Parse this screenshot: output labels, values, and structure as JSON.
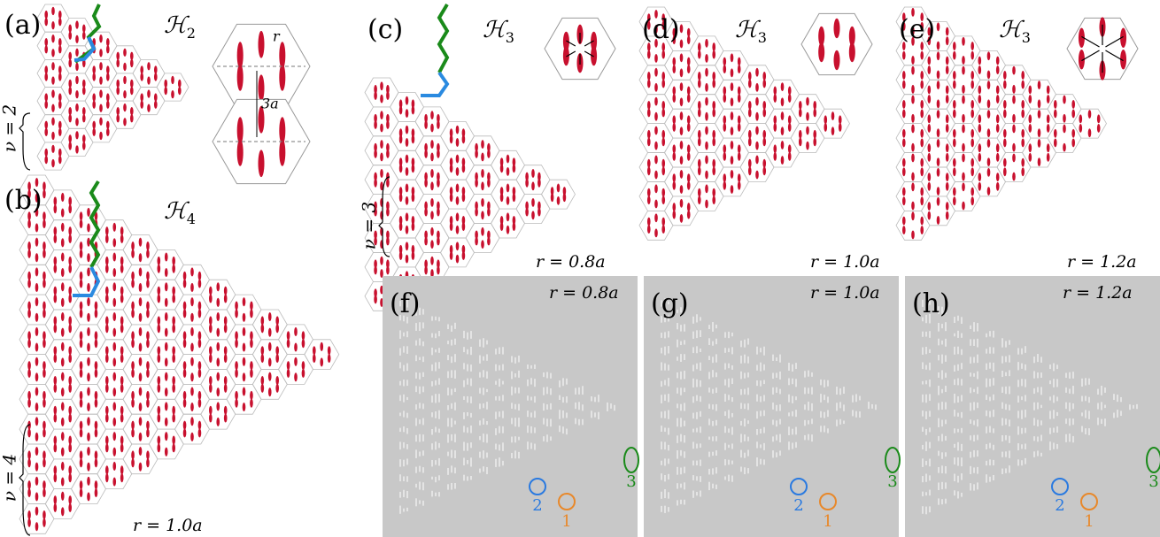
{
  "panels": [
    {
      "label": "(a)",
      "hamiltonian": "ℋ",
      "index": "2",
      "nu": "ν = 2",
      "inset_r": "r",
      "inset_spacing": "3a"
    },
    {
      "label": "(b)",
      "hamiltonian": "ℋ",
      "index": "4",
      "nu": "ν = 4",
      "radius": "r = 1.0a"
    },
    {
      "label": "(c)",
      "hamiltonian": "ℋ",
      "index": "3",
      "nu": "ν = 3",
      "radius": "r = 0.8a"
    },
    {
      "label": "(d)",
      "hamiltonian": "ℋ",
      "index": "3",
      "radius": "r = 1.0a"
    },
    {
      "label": "(e)",
      "hamiltonian": "ℋ",
      "index": "3",
      "radius": "r = 1.2a"
    },
    {
      "label": "(f)",
      "radius": "r = 0.8a",
      "markers": [
        "2",
        "1",
        "3"
      ]
    },
    {
      "label": "(g)",
      "radius": "r = 1.0a",
      "markers": [
        "2",
        "1",
        "3"
      ]
    },
    {
      "label": "(h)",
      "radius": "r = 1.2a",
      "markers": [
        "2",
        "1",
        "3"
      ]
    }
  ]
}
